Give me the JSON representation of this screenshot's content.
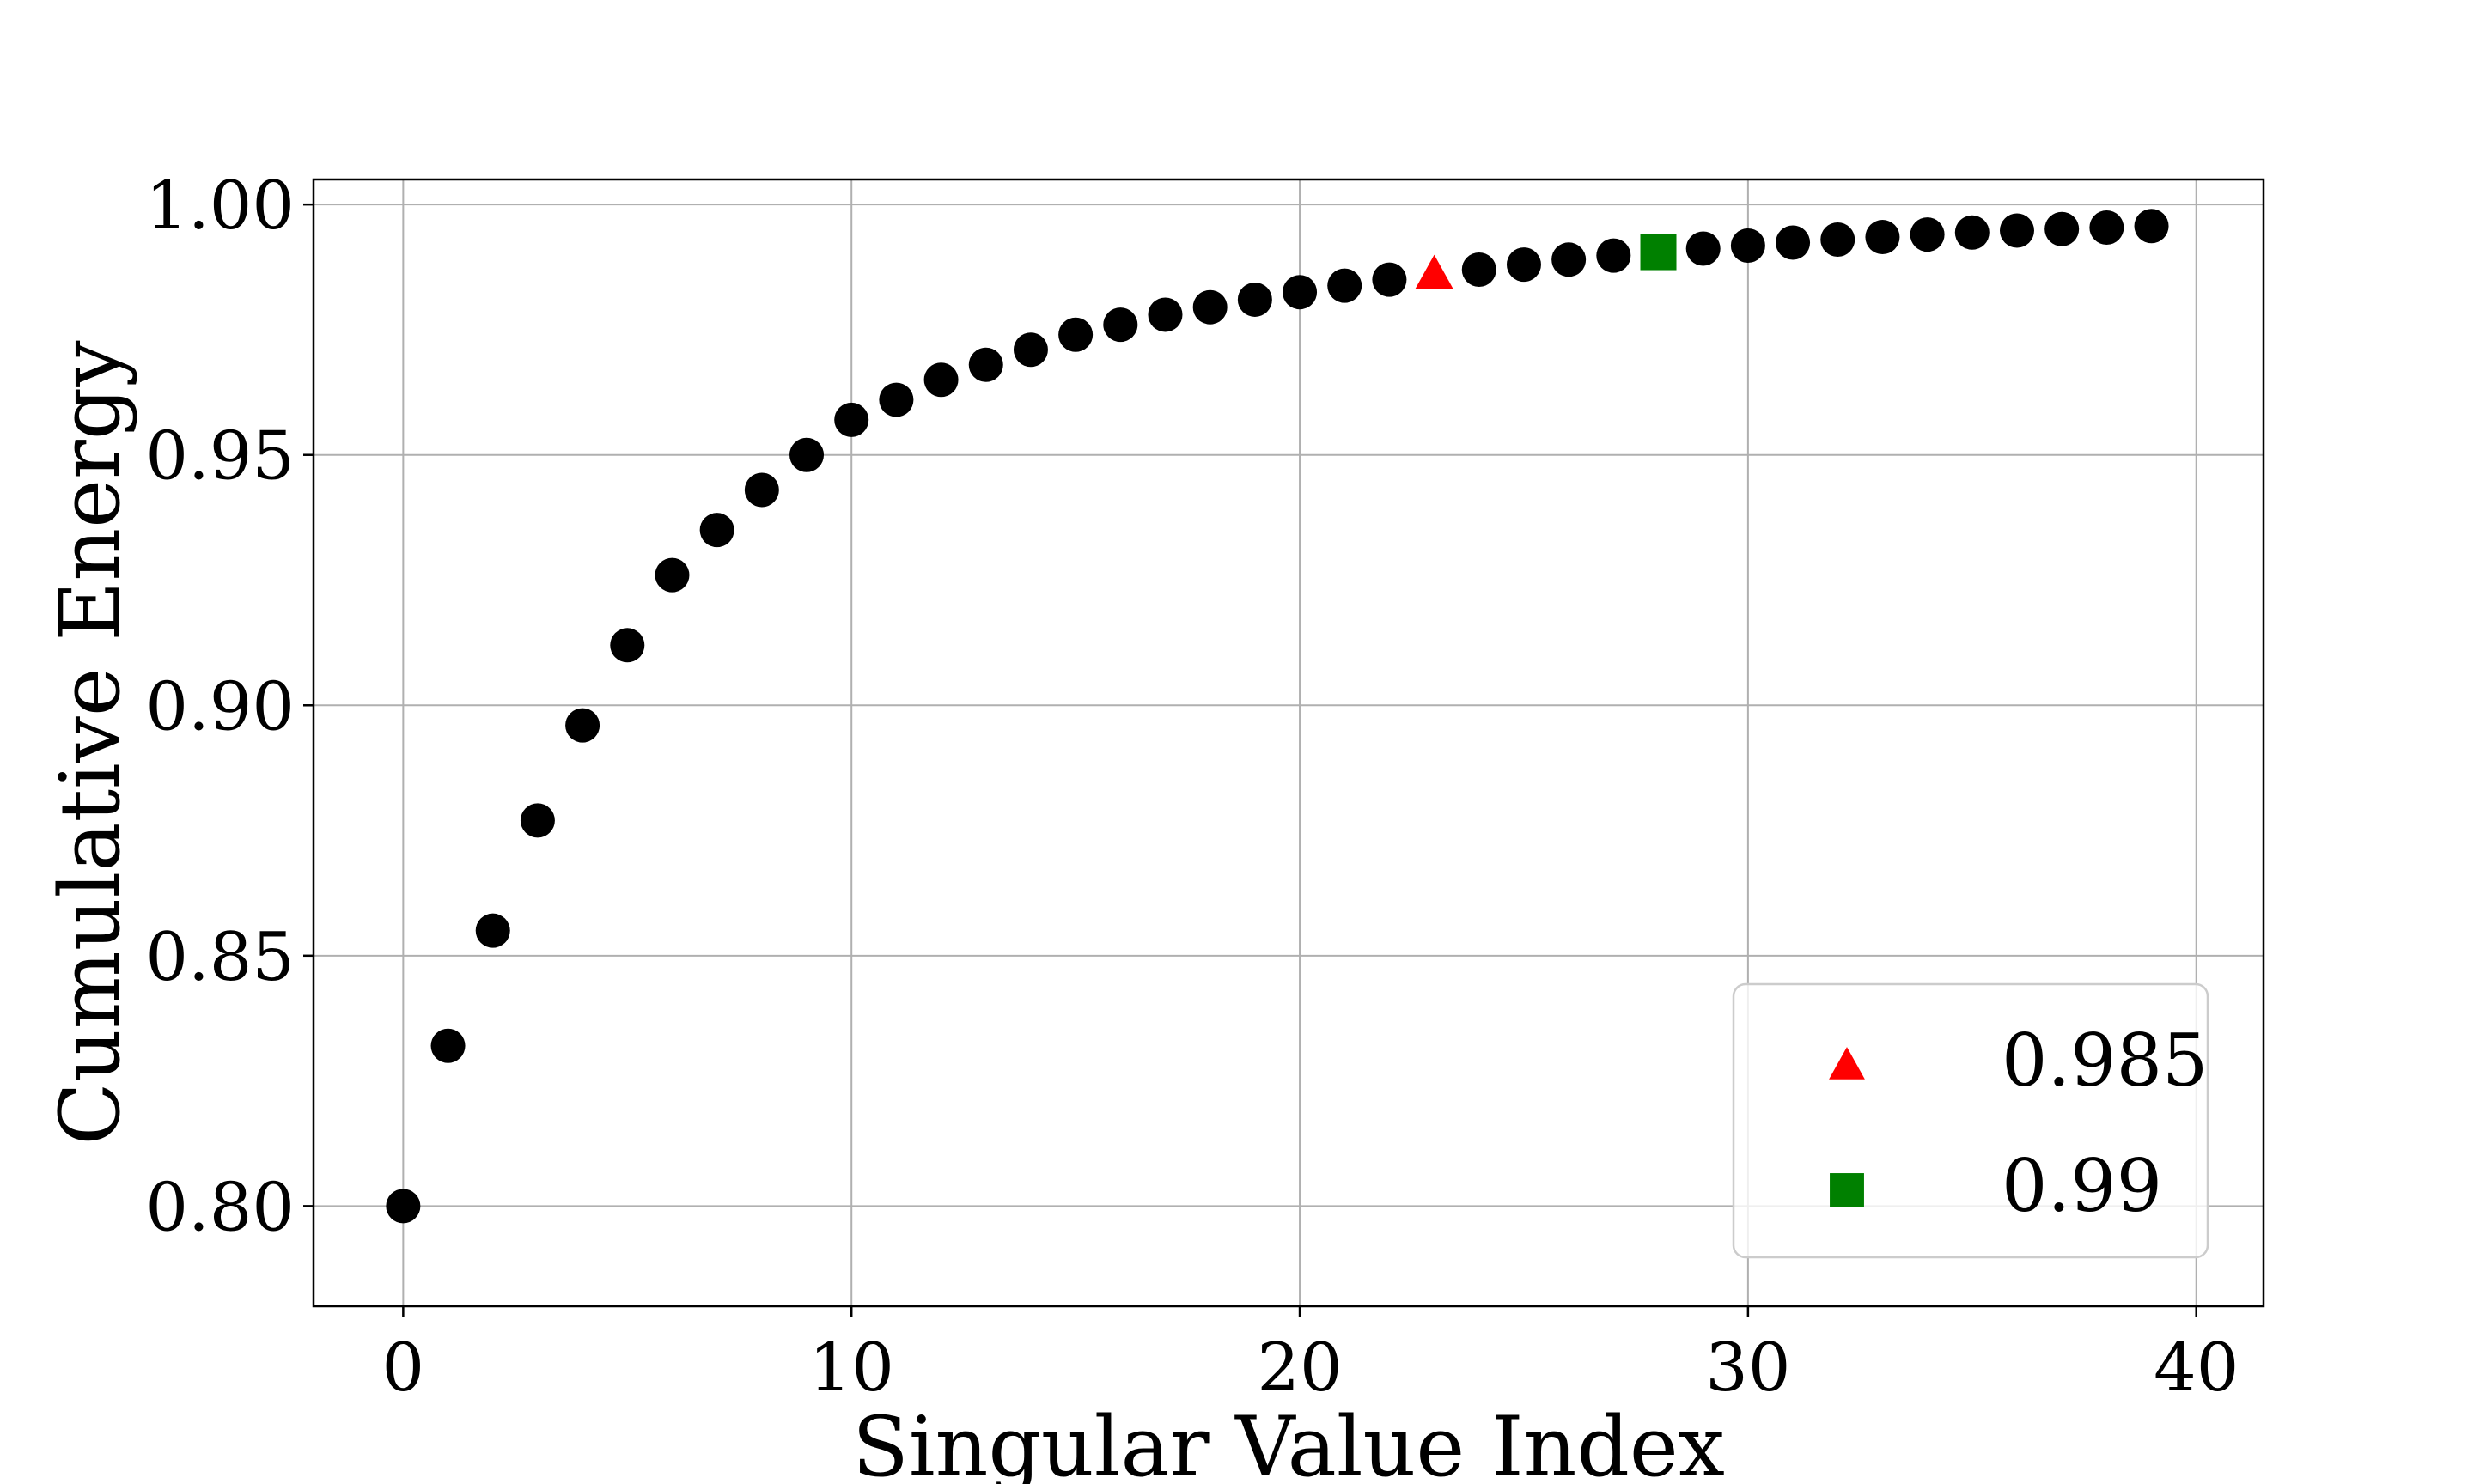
{
  "chart_data": {
    "type": "scatter",
    "title": "",
    "xlabel": "Singular Value Index",
    "ylabel": "Cumulative Energy",
    "xlim": [
      -2,
      41.5
    ],
    "ylim": [
      0.78,
      1.005
    ],
    "xticks": [
      0,
      10,
      20,
      30,
      40
    ],
    "xtick_labels": [
      "0",
      "10",
      "20",
      "30",
      "40"
    ],
    "yticks": [
      0.8,
      0.85,
      0.9,
      0.95,
      1.0
    ],
    "ytick_labels": [
      "0.80",
      "0.85",
      "0.90",
      "0.95",
      "1.00"
    ],
    "grid": true,
    "legend_position": "lower-right",
    "series": [
      {
        "marker": "circle",
        "color": "#000000",
        "x": [
          0,
          1,
          2,
          3,
          4,
          5,
          6,
          7,
          8,
          9,
          10,
          11,
          12,
          13,
          14,
          15,
          16,
          17,
          18,
          19,
          20,
          21,
          22,
          24,
          25,
          26,
          27,
          29,
          30,
          31,
          32,
          33,
          34,
          35,
          36,
          37,
          38,
          39
        ],
        "y": [
          0.8,
          0.832,
          0.855,
          0.877,
          0.896,
          0.912,
          0.926,
          0.935,
          0.943,
          0.95,
          0.957,
          0.961,
          0.965,
          0.968,
          0.971,
          0.974,
          0.976,
          0.978,
          0.9795,
          0.981,
          0.9825,
          0.9838,
          0.985,
          0.987,
          0.988,
          0.989,
          0.9898,
          0.9912,
          0.9918,
          0.9924,
          0.993,
          0.9935,
          0.994,
          0.9944,
          0.9948,
          0.9951,
          0.9954,
          0.9957
        ]
      },
      {
        "name": "0.985",
        "marker": "triangle",
        "color": "#ff0000",
        "x": [
          23
        ],
        "y": [
          0.9862
        ]
      },
      {
        "name": "0.99",
        "marker": "square",
        "color": "#008000",
        "x": [
          28
        ],
        "y": [
          0.9905
        ]
      }
    ]
  }
}
